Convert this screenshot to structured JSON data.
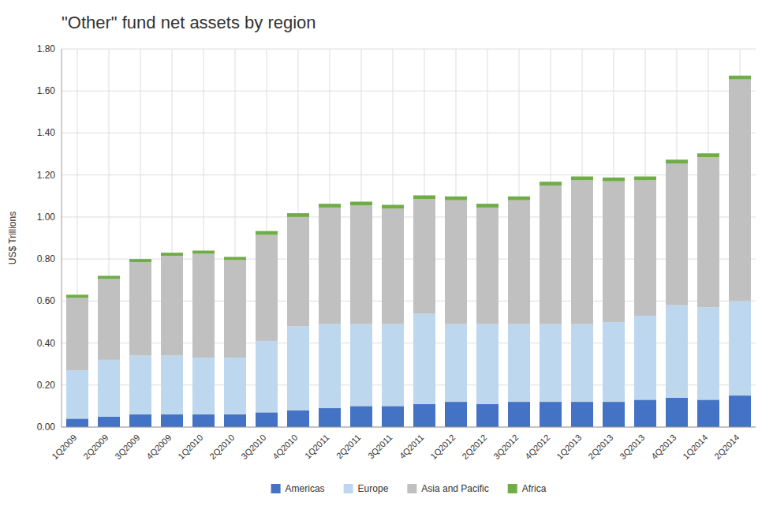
{
  "chart_data": {
    "type": "bar",
    "stacked": true,
    "grid": true,
    "legend": "bottom",
    "title": "\"Other\"  fund net assets by region",
    "ylabel": "US$ Trillions",
    "categories": [
      "1Q2009",
      "2Q2009",
      "3Q2009",
      "4Q2009",
      "1Q2010",
      "2Q2010",
      "3Q2010",
      "4Q2010",
      "1Q2011",
      "2Q2011",
      "3Q2011",
      "4Q2011",
      "1Q2012",
      "2Q2012",
      "3Q2012",
      "4Q2012",
      "1Q2013",
      "2Q2013",
      "3Q2013",
      "4Q2013",
      "1Q2014",
      "2Q2014"
    ],
    "series": [
      {
        "name": "Americas",
        "color": "#4472C4",
        "values": [
          0.04,
          0.05,
          0.06,
          0.06,
          0.06,
          0.06,
          0.07,
          0.08,
          0.09,
          0.1,
          0.1,
          0.11,
          0.12,
          0.11,
          0.12,
          0.12,
          0.12,
          0.12,
          0.13,
          0.14,
          0.13,
          0.15
        ]
      },
      {
        "name": "Europe",
        "color": "#BDD7EE",
        "values": [
          0.23,
          0.27,
          0.28,
          0.28,
          0.27,
          0.27,
          0.34,
          0.4,
          0.4,
          0.39,
          0.39,
          0.43,
          0.37,
          0.38,
          0.37,
          0.37,
          0.37,
          0.38,
          0.4,
          0.44,
          0.44,
          0.45
        ]
      },
      {
        "name": "Asia and Pacific",
        "color": "#C0C0C0",
        "values": [
          0.345,
          0.385,
          0.445,
          0.475,
          0.495,
          0.465,
          0.505,
          0.52,
          0.555,
          0.565,
          0.55,
          0.545,
          0.59,
          0.555,
          0.59,
          0.66,
          0.685,
          0.67,
          0.645,
          0.675,
          0.715,
          1.055
        ]
      },
      {
        "name": "Africa",
        "color": "#70AD47",
        "values": [
          0.015,
          0.015,
          0.015,
          0.015,
          0.015,
          0.015,
          0.018,
          0.018,
          0.018,
          0.018,
          0.018,
          0.018,
          0.018,
          0.018,
          0.018,
          0.018,
          0.018,
          0.018,
          0.018,
          0.018,
          0.018,
          0.018
        ]
      }
    ],
    "ylim": [
      0.0,
      1.8
    ],
    "yticks": [
      {
        "value": 0.0,
        "label": "0.00"
      },
      {
        "value": 0.2,
        "label": "0.20"
      },
      {
        "value": 0.4,
        "label": "0.40"
      },
      {
        "value": 0.6,
        "label": "0.60"
      },
      {
        "value": 0.8,
        "label": "0.80"
      },
      {
        "value": 1.0,
        "label": "1.00"
      },
      {
        "value": 1.2,
        "label": "1.20"
      },
      {
        "value": 1.4,
        "label": "1.40"
      },
      {
        "value": 1.6,
        "label": "1.60"
      },
      {
        "value": 1.8,
        "label": "1.80"
      }
    ]
  }
}
